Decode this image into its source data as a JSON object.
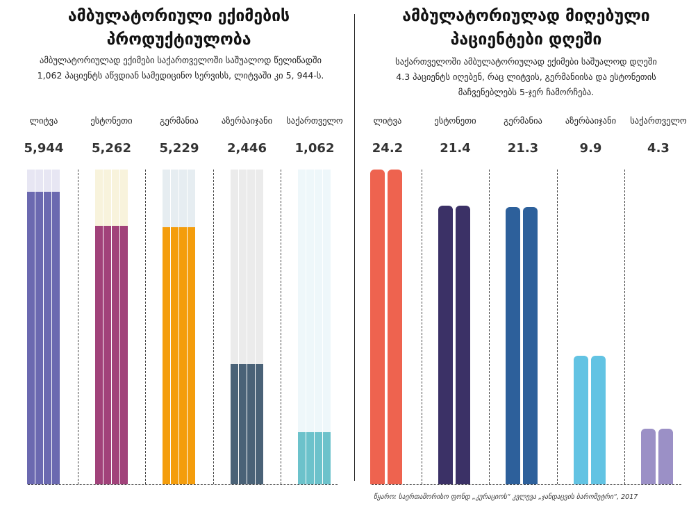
{
  "chart_data": [
    {
      "type": "bar",
      "title": "ამბულატორიული ექიმების პროდუქტიულობა",
      "subtitle": [
        "ამბულატორიულად ექიმები საქართველოში საშუალოდ წელიწადში",
        "1,062 პაციენტს აწვდიან სამედიცინო სერვისს, ლიტვაში კი 5, 944-ს."
      ],
      "categories": [
        "ლიტვა",
        "ესტონეთი",
        "გერმანია",
        "აზერბაიჯანი",
        "საქართველო"
      ],
      "values": [
        5944,
        5262,
        5229,
        2446,
        1062
      ],
      "value_labels": [
        "5,944",
        "5,262",
        "5,229",
        "2,446",
        "1,062"
      ],
      "ylim": [
        0,
        6400
      ],
      "colors": [
        "#6b69b0",
        "#a1427a",
        "#f49d0c",
        "#4a6277",
        "#6cc2cb"
      ],
      "bg_colors": [
        "#e7e6f3",
        "#f8f3dc",
        "#e6edf1",
        "#ebebeb",
        "#eef7fa"
      ]
    },
    {
      "type": "bar",
      "title": "ამბულატორიულად მიღებული პაციენტები დღეში",
      "subtitle": [
        "საქართველოში ამბულატორიულად ექიმები საშუალოდ დღეში",
        "4.3 პაციენტს იღებენ, რაც ლიტვის, გერმანიისა და ესტონეთის",
        "მაჩვენებლებს 5-ჯერ ჩამორჩება."
      ],
      "categories": [
        "ლიტვა",
        "ესტონეთი",
        "გერმანია",
        "აზერბაიჯანი",
        "საქართველო"
      ],
      "values": [
        24.2,
        21.4,
        21.3,
        9.9,
        4.3
      ],
      "value_labels": [
        "24.2",
        "21.4",
        "21.3",
        "9.9",
        "4.3"
      ],
      "ylim": [
        0,
        24.2
      ],
      "colors": [
        "#ee634f",
        "#3b3166",
        "#2d609b",
        "#62c3e3",
        "#9b90c6"
      ]
    }
  ],
  "source": "წყარო: საერთაშორისო ფონდ „კურაციოს“ კვლევა „ჯანდაცვის ბარომეტრი“, 2017"
}
